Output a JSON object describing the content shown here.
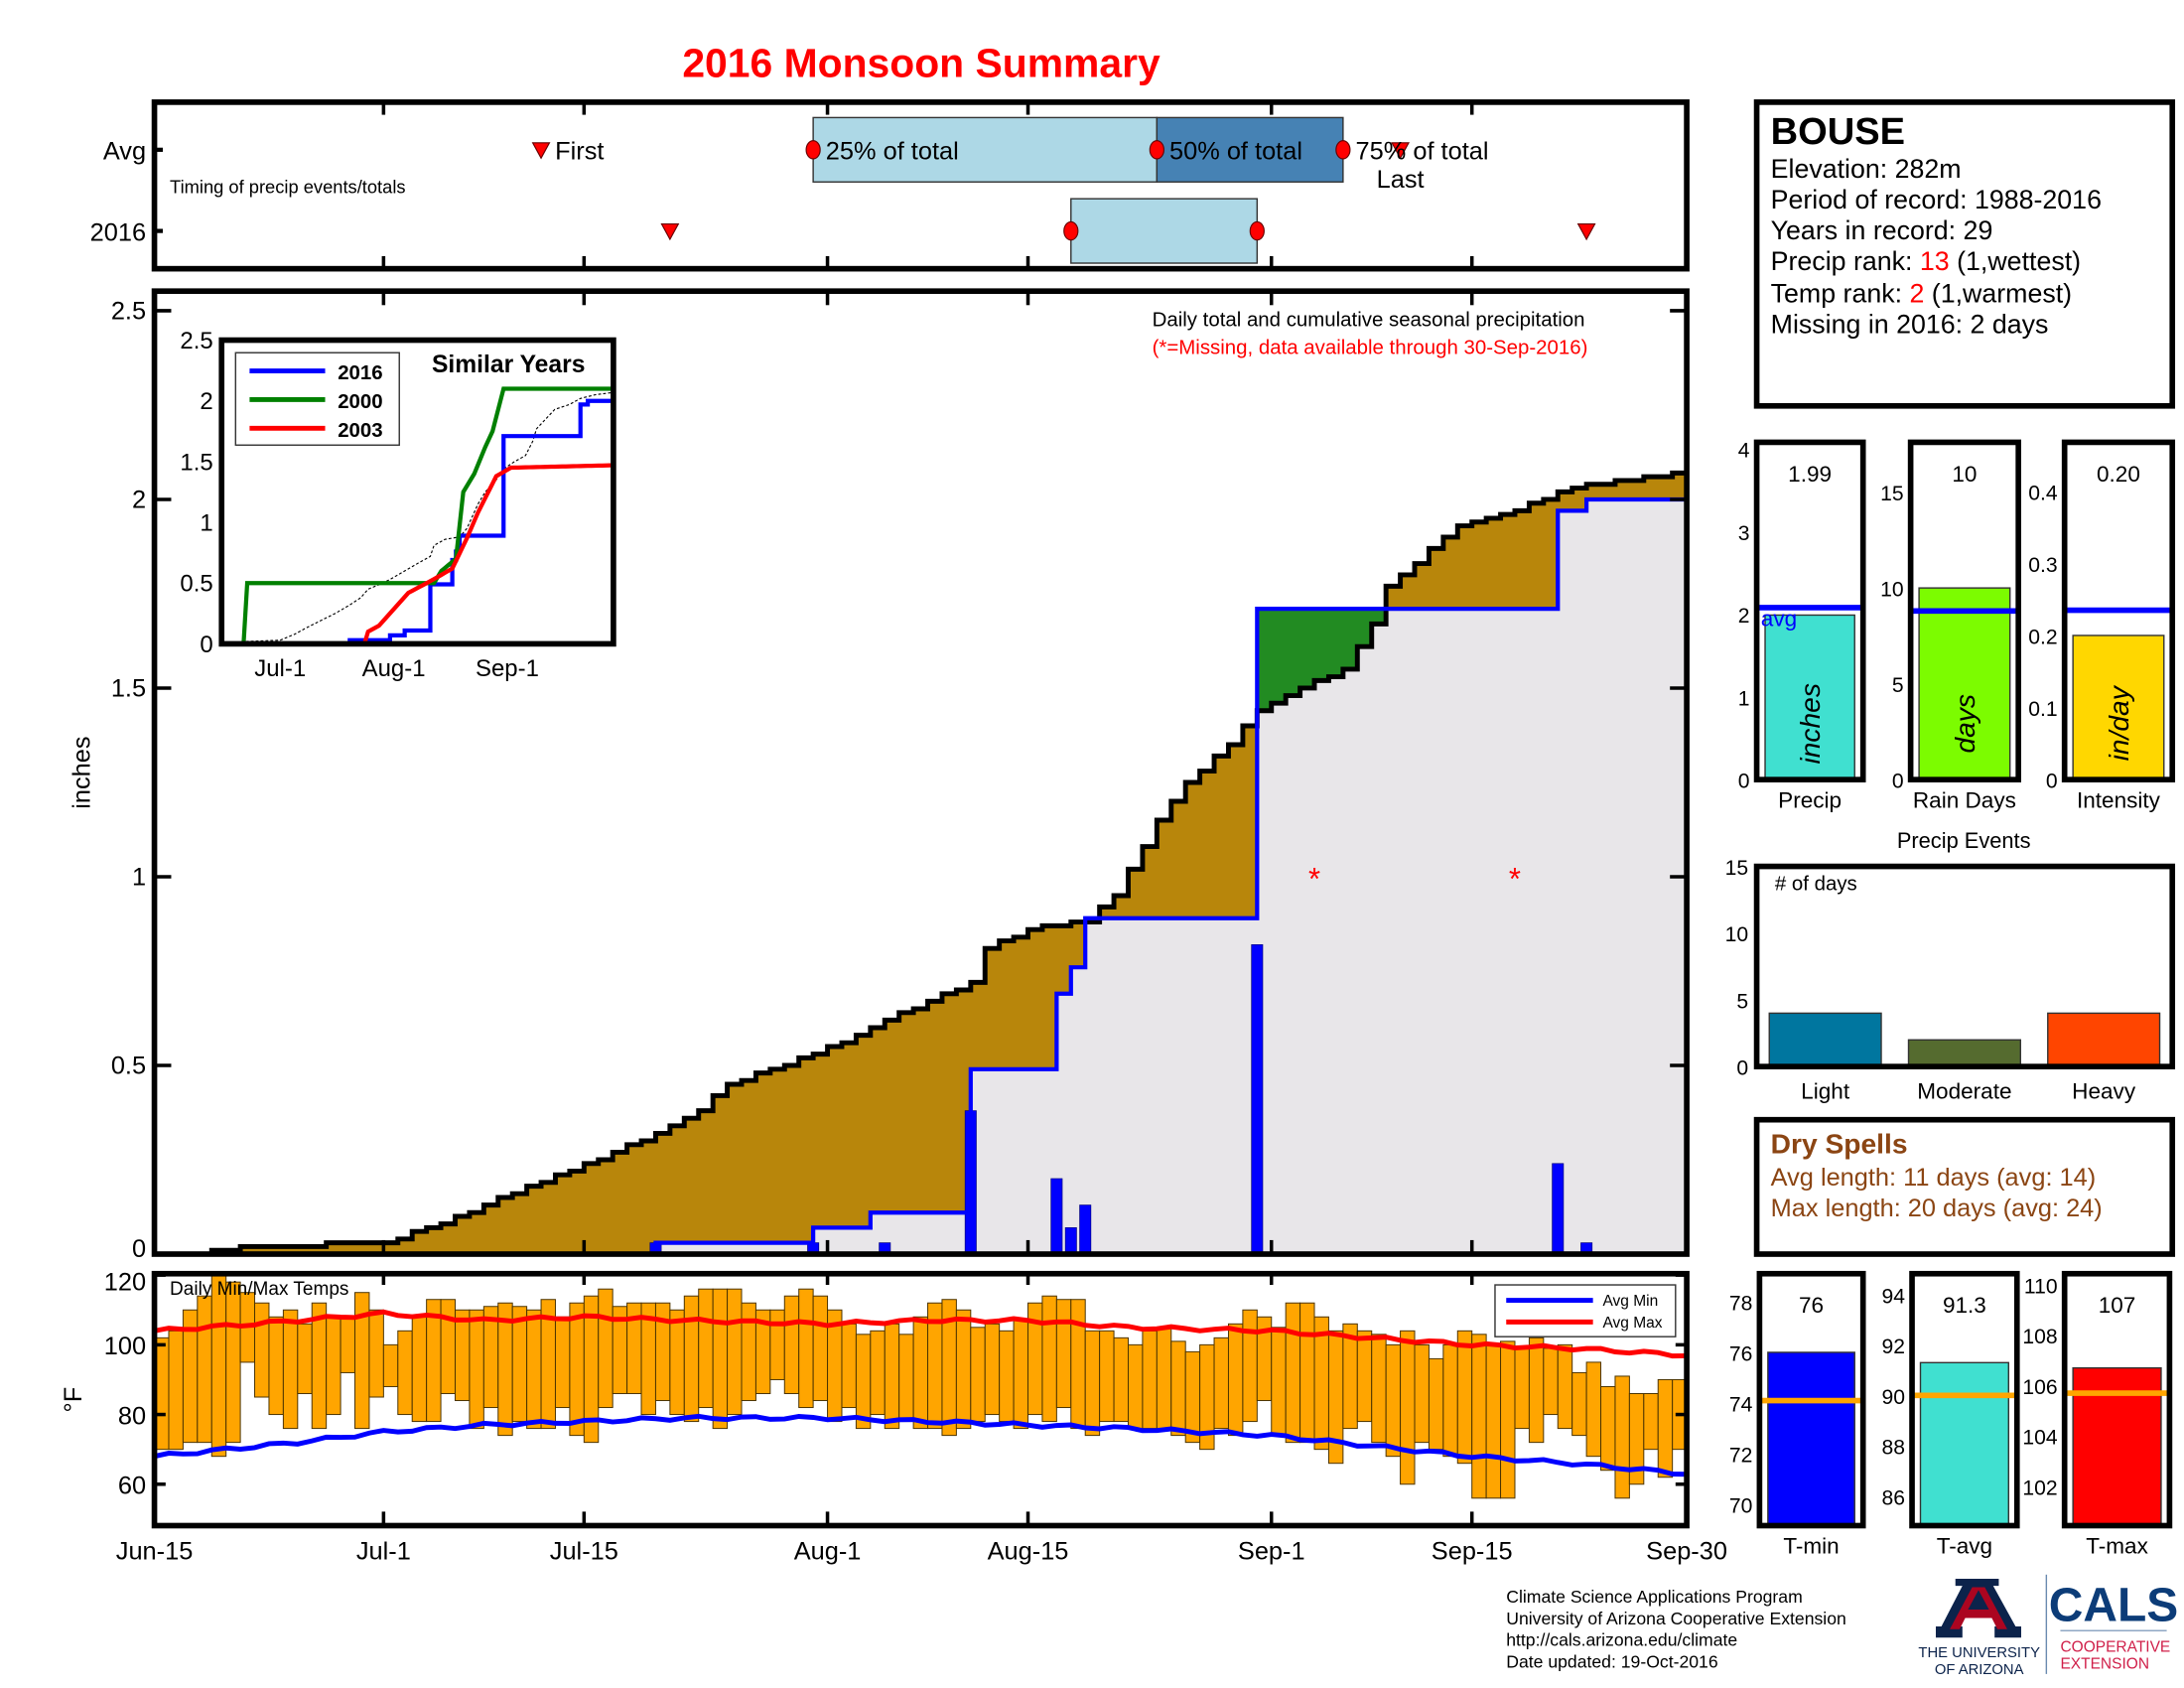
{
  "title": "2016 Monsoon Summary",
  "station": {
    "name": "BOUSE",
    "elevation": "Elevation: 282m",
    "period": "Period of record: 1988-2016",
    "years": "Years in record: 29",
    "precip_rank_label": "Precip rank: ",
    "precip_rank": "13",
    "precip_rank_note": " (1,wettest)",
    "temp_rank_label": "Temp rank: ",
    "temp_rank": "2",
    "temp_rank_note": " (1,warmest)",
    "missing": "Missing in 2016: 2 days"
  },
  "dry_spells": {
    "title": "Dry Spells",
    "avg_length": "Avg length: 11 days (avg: 14)",
    "max_length": "Max length: 20 days (avg: 24)",
    "color": "#8B4513"
  },
  "footer": {
    "lines": [
      "Climate Science Applications Program",
      "University of Arizona Cooperative Extension",
      "http://cals.arizona.edu/climate",
      " Date updated: 19-Oct-2016"
    ]
  },
  "logo": {
    "ua_line1": "THE UNIVERSITY",
    "ua_line2": "OF ARIZONA",
    "cals": "CALS",
    "ext_line1": "COOPERATIVE",
    "ext_line2": "EXTENSION"
  },
  "x_axis": {
    "range": [
      "2016-06-15",
      "2016-09-30"
    ],
    "ticks": [
      {
        "date": "2016-06-15",
        "label": "Jun-15"
      },
      {
        "date": "2016-07-01",
        "label": "Jul-1"
      },
      {
        "date": "2016-07-15",
        "label": "Jul-15"
      },
      {
        "date": "2016-08-01",
        "label": "Aug-1"
      },
      {
        "date": "2016-08-15",
        "label": "Aug-15"
      },
      {
        "date": "2016-09-01",
        "label": "Sep-1"
      },
      {
        "date": "2016-09-15",
        "label": "Sep-15"
      },
      {
        "date": "2016-09-30",
        "label": "Sep-30"
      }
    ]
  },
  "chart_data": [
    {
      "type": "timeline",
      "annotation": "Timing of precip events/totals",
      "marker_labels": {
        "first": "First",
        "p25": "25% of total",
        "p50": "50% of total",
        "p75": "75% of total",
        "last": "Last"
      },
      "rows": [
        {
          "label": "Avg",
          "first": "2016-07-12",
          "p25": "2016-07-31",
          "p50": "2016-08-24",
          "p75": "2016-09-06",
          "last": "2016-09-10"
        },
        {
          "label": "2016",
          "first": "2016-07-21",
          "p25": "2016-08-18",
          "p50": "2016-08-31",
          "last": "2016-09-23"
        }
      ],
      "colors": {
        "p25_p50": "#ADD8E6",
        "p50_p75": "#4682B4",
        "marker": "#FF0000"
      }
    },
    {
      "type": "area",
      "title": "Daily total and cumulative seasonal precipitation",
      "subtitle": "(*=Missing, data available through 30-Sep-2016)",
      "ylabel": "inches",
      "ylim": [
        0,
        2.5
      ],
      "yticks": [
        0,
        0.5,
        1,
        1.5,
        2,
        2.5
      ],
      "grid": false,
      "avg_cumulative": [
        [
          "2016-06-15",
          0
        ],
        [
          "2016-06-18",
          0
        ],
        [
          "2016-06-22",
          0.02
        ],
        [
          "2016-07-01",
          0.03
        ],
        [
          "2016-07-05",
          0.08
        ],
        [
          "2016-07-08",
          0.13
        ],
        [
          "2016-07-12",
          0.19
        ],
        [
          "2016-07-16",
          0.25
        ],
        [
          "2016-07-20",
          0.32
        ],
        [
          "2016-07-23",
          0.38
        ],
        [
          "2016-07-25",
          0.45
        ],
        [
          "2016-07-29",
          0.5
        ],
        [
          "2016-07-31",
          0.53
        ],
        [
          "2016-08-04",
          0.6
        ],
        [
          "2016-08-08",
          0.67
        ],
        [
          "2016-08-11",
          0.72
        ],
        [
          "2016-08-12",
          0.81
        ],
        [
          "2016-08-15",
          0.86
        ],
        [
          "2016-08-19",
          0.88
        ],
        [
          "2016-08-21",
          0.95
        ],
        [
          "2016-08-24",
          1.15
        ],
        [
          "2016-08-26",
          1.25
        ],
        [
          "2016-08-29",
          1.35
        ],
        [
          "2016-08-31",
          1.44
        ],
        [
          "2016-09-03",
          1.5
        ],
        [
          "2016-09-06",
          1.55
        ],
        [
          "2016-09-08",
          1.67
        ],
        [
          "2016-09-09",
          1.77
        ],
        [
          "2016-09-14",
          1.93
        ],
        [
          "2016-09-18",
          1.97
        ],
        [
          "2016-09-21",
          2.02
        ],
        [
          "2016-09-25",
          2.05
        ],
        [
          "2016-09-30",
          2.07
        ]
      ],
      "cumulative_2016": [
        [
          "2016-06-15",
          0
        ],
        [
          "2016-07-20",
          0.03
        ],
        [
          "2016-07-31",
          0.07
        ],
        [
          "2016-08-04",
          0.11
        ],
        [
          "2016-08-11",
          0.49
        ],
        [
          "2016-08-17",
          0.69
        ],
        [
          "2016-08-18",
          0.76
        ],
        [
          "2016-08-19",
          0.89
        ],
        [
          "2016-08-31",
          1.71
        ],
        [
          "2016-09-21",
          1.97
        ],
        [
          "2016-09-23",
          2.0
        ],
        [
          "2016-09-30",
          2.0
        ]
      ],
      "daily_2016": [
        [
          "2016-07-20",
          0.03
        ],
        [
          "2016-07-31",
          0.03
        ],
        [
          "2016-08-05",
          0.03
        ],
        [
          "2016-08-11",
          0.38
        ],
        [
          "2016-08-17",
          0.2
        ],
        [
          "2016-08-18",
          0.07
        ],
        [
          "2016-08-19",
          0.13
        ],
        [
          "2016-08-31",
          0.82
        ],
        [
          "2016-09-21",
          0.24
        ],
        [
          "2016-09-23",
          0.03
        ]
      ],
      "missing": [
        [
          "2016-09-04",
          1.0
        ],
        [
          "2016-09-18",
          1.0
        ]
      ],
      "missing_symbol": "*",
      "colors": {
        "deficit": "#B8860B",
        "surplus": "#228B22",
        "below": "#E8E6E9",
        "line_2016": "#0000FF",
        "line_avg": "#000000",
        "missing": "#FF0000"
      }
    },
    {
      "type": "line",
      "title": "Similar Years",
      "ylim": [
        0,
        2.5
      ],
      "yticks": [
        0,
        0.5,
        1,
        1.5,
        2,
        2.5
      ],
      "xticks": [
        {
          "date": "2016-07-01",
          "label": "Jul-1"
        },
        {
          "date": "2016-08-01",
          "label": "Aug-1"
        },
        {
          "date": "2016-09-01",
          "label": "Sep-1"
        }
      ],
      "legend_position": "top-left",
      "series": [
        {
          "name": "2016",
          "color": "#0000FF",
          "ref": "cumulative_2016"
        },
        {
          "name": "2000",
          "color": "#008000",
          "points": [
            [
              "2016-06-15",
              0
            ],
            [
              "2016-06-21",
              0
            ],
            [
              "2016-06-22",
              0.5
            ],
            [
              "2016-08-12",
              0.5
            ],
            [
              "2016-08-14",
              0.6
            ],
            [
              "2016-08-18",
              0.7
            ],
            [
              "2016-08-20",
              1.25
            ],
            [
              "2016-08-23",
              1.4
            ],
            [
              "2016-08-26",
              1.62
            ],
            [
              "2016-08-28",
              1.75
            ],
            [
              "2016-08-31",
              2.1
            ],
            [
              "2016-09-30",
              2.1
            ]
          ]
        },
        {
          "name": "2003",
          "color": "#FF0000",
          "points": [
            [
              "2016-06-15",
              0
            ],
            [
              "2016-07-24",
              0
            ],
            [
              "2016-07-25",
              0.1
            ],
            [
              "2016-07-28",
              0.15
            ],
            [
              "2016-08-05",
              0.42
            ],
            [
              "2016-08-10",
              0.5
            ],
            [
              "2016-08-13",
              0.55
            ],
            [
              "2016-08-17",
              0.62
            ],
            [
              "2016-08-21",
              0.87
            ],
            [
              "2016-08-24",
              1.08
            ],
            [
              "2016-08-29",
              1.38
            ],
            [
              "2016-09-02",
              1.45
            ],
            [
              "2016-09-30",
              1.47
            ]
          ]
        }
      ],
      "avg_style": "dotted"
    },
    {
      "type": "bar",
      "title": "Daily Min/Max Temps",
      "ylabel": "°F",
      "ylim": [
        48,
        120
      ],
      "yticks": [
        60,
        80,
        100,
        120
      ],
      "start_date": "2016-06-15",
      "daily_max": [
        102,
        104,
        110,
        114,
        120,
        118,
        115,
        112,
        108,
        110,
        106,
        112,
        108,
        108,
        115,
        110,
        100,
        104,
        108,
        113,
        113,
        110,
        110,
        111,
        112,
        111,
        110,
        113,
        108,
        112,
        114,
        116,
        111,
        112,
        112,
        112,
        110,
        114,
        116,
        116,
        116,
        112,
        110,
        110,
        114,
        116,
        114,
        110,
        106,
        103,
        104,
        106,
        103,
        108,
        112,
        113,
        110,
        105,
        106,
        104,
        107,
        112,
        114,
        113,
        113,
        104,
        104,
        102,
        100,
        104,
        105,
        101,
        98,
        100,
        102,
        106,
        110,
        108,
        105,
        112,
        112,
        108,
        104,
        106,
        104,
        103,
        100,
        104,
        100,
        96,
        100,
        104,
        103,
        100,
        101,
        99,
        102,
        99,
        100,
        92,
        95,
        88,
        91,
        86,
        86,
        90,
        90,
        96
      ],
      "daily_min": [
        70,
        70,
        72,
        72,
        68,
        72,
        95,
        85,
        80,
        76,
        86,
        76,
        80,
        92,
        76,
        85,
        88,
        80,
        78,
        78,
        86,
        84,
        76,
        82,
        74,
        78,
        76,
        76,
        82,
        74,
        72,
        82,
        86,
        86,
        80,
        84,
        80,
        78,
        82,
        76,
        80,
        84,
        86,
        90,
        86,
        82,
        84,
        78,
        82,
        76,
        80,
        76,
        78,
        76,
        76,
        74,
        76,
        78,
        80,
        78,
        76,
        80,
        78,
        82,
        76,
        74,
        78,
        78,
        76,
        76,
        76,
        74,
        72,
        70,
        76,
        74,
        78,
        84,
        74,
        72,
        72,
        70,
        66,
        76,
        78,
        72,
        68,
        60,
        72,
        70,
        68,
        66,
        56,
        56,
        56,
        76,
        72,
        80,
        76,
        74,
        68,
        64,
        56,
        60,
        70,
        62,
        70,
        64
      ],
      "avg_max": [
        [
          "2016-06-15",
          104
        ],
        [
          "2016-06-22",
          106
        ],
        [
          "2016-07-01",
          109
        ],
        [
          "2016-07-08",
          107
        ],
        [
          "2016-07-15",
          108
        ],
        [
          "2016-07-22",
          107
        ],
        [
          "2016-08-01",
          106
        ],
        [
          "2016-08-08",
          107
        ],
        [
          "2016-08-15",
          107
        ],
        [
          "2016-08-22",
          105
        ],
        [
          "2016-09-01",
          104
        ],
        [
          "2016-09-08",
          102
        ],
        [
          "2016-09-15",
          100
        ],
        [
          "2016-09-22",
          99
        ],
        [
          "2016-09-30",
          97
        ]
      ],
      "avg_min": [
        [
          "2016-06-15",
          68
        ],
        [
          "2016-06-20",
          70
        ],
        [
          "2016-06-25",
          72
        ],
        [
          "2016-07-01",
          75
        ],
        [
          "2016-07-08",
          77
        ],
        [
          "2016-07-15",
          78
        ],
        [
          "2016-07-22",
          79
        ],
        [
          "2016-08-01",
          79
        ],
        [
          "2016-08-08",
          78
        ],
        [
          "2016-08-15",
          77
        ],
        [
          "2016-08-22",
          76
        ],
        [
          "2016-09-01",
          74
        ],
        [
          "2016-09-08",
          71
        ],
        [
          "2016-09-15",
          68
        ],
        [
          "2016-09-22",
          66
        ],
        [
          "2016-09-30",
          63
        ]
      ],
      "legend": [
        {
          "name": "Avg Min",
          "color": "#0000FF"
        },
        {
          "name": "Avg Max",
          "color": "#FF0000"
        }
      ],
      "legend_position": "top-right",
      "bar_color": "#FFA500"
    },
    {
      "type": "bar",
      "panels": [
        {
          "label": "Precip",
          "value": 1.99,
          "value_label": "1.99",
          "avg": 2.08,
          "avg_label": "avg",
          "unit": "inches",
          "ylim": [
            0,
            4.08
          ],
          "yticks": [
            0,
            1,
            2,
            3,
            4
          ],
          "color": "#40E0D0"
        },
        {
          "label": "Rain Days",
          "value": 10,
          "value_label": "10",
          "avg": 8.8,
          "unit": "days",
          "ylim": [
            0,
            17.6
          ],
          "yticks": [
            0,
            5,
            10,
            15
          ],
          "color": "#7CFC00"
        },
        {
          "label": "Intensity",
          "value": 0.2,
          "value_label": "0.20",
          "avg": 0.235,
          "unit": "in/day",
          "ylim": [
            0,
            0.468
          ],
          "yticks": [
            0,
            0.1,
            0.2,
            0.3,
            0.4
          ],
          "color": "#FFD700"
        }
      ],
      "avg_color": "#0000FF"
    },
    {
      "type": "bar",
      "title": "Precip Events",
      "annotation": "# of days",
      "ylim": [
        0,
        15
      ],
      "yticks": [
        0,
        5,
        10,
        15
      ],
      "categories": [
        "Light",
        "Moderate",
        "Heavy"
      ],
      "values": [
        4,
        2,
        4
      ],
      "colors": [
        "#00769F",
        "#556B2F",
        "#FF4500"
      ]
    },
    {
      "type": "bar",
      "panels": [
        {
          "label": "T-min",
          "value": 76,
          "value_label": "76",
          "avg": 74.1,
          "ylim": [
            69.17,
            79.1
          ],
          "yticks": [
            70,
            72,
            74,
            76,
            78
          ],
          "color": "#0000FF"
        },
        {
          "label": "T-avg",
          "value": 91.3,
          "value_label": "91.3",
          "avg": 90,
          "ylim": [
            84.83,
            94.83
          ],
          "yticks": [
            86,
            88,
            90,
            92,
            94
          ],
          "color": "#40E0D0"
        },
        {
          "label": "T-max",
          "value": 106.7,
          "value_label": "107",
          "avg": 105.7,
          "ylim": [
            100.44,
            110.44
          ],
          "yticks": [
            102,
            104,
            106,
            108,
            110
          ],
          "color": "#FF0000"
        }
      ],
      "avg_color": "#FFA500"
    }
  ]
}
